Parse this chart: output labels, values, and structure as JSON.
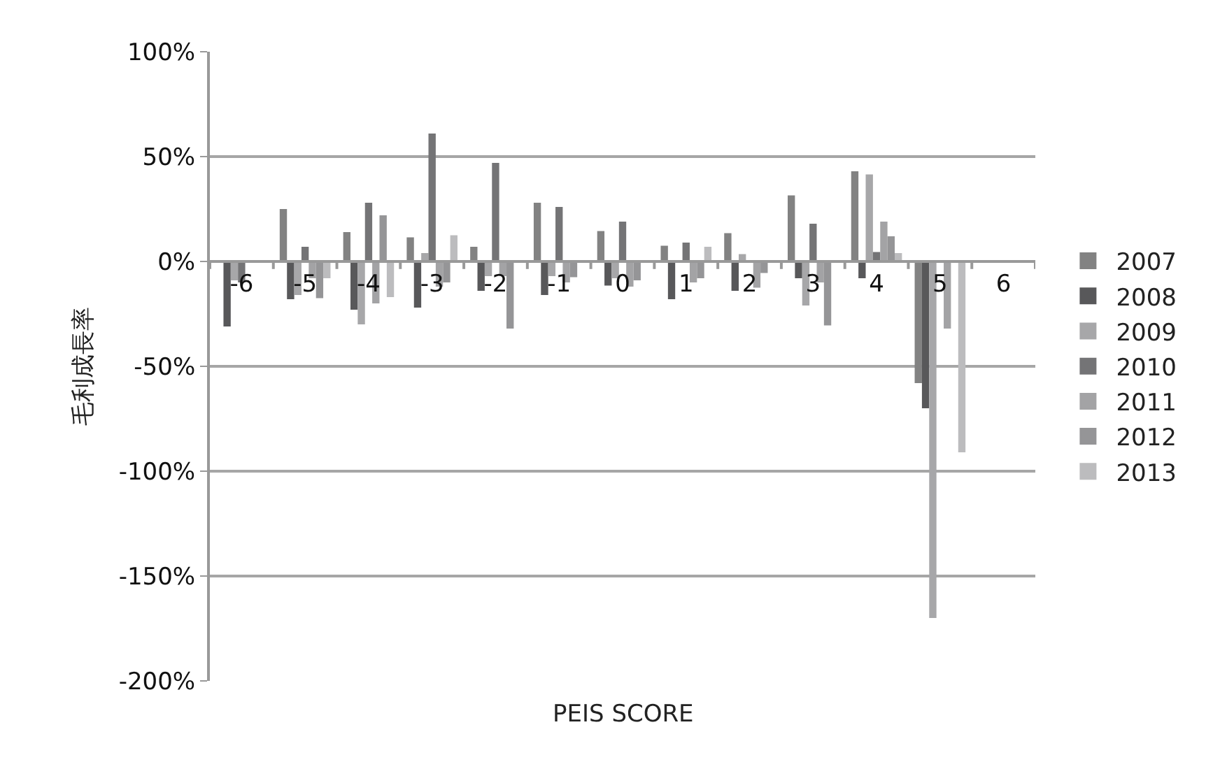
{
  "chart_data": {
    "type": "bar",
    "xlabel": "PEIS SCORE",
    "ylabel": "毛利成長率",
    "categories": [
      "-6",
      "-5",
      "-4",
      "-3",
      "-2",
      "-1",
      "0",
      "1",
      "2",
      "3",
      "4",
      "5",
      "6"
    ],
    "series": [
      {
        "name": "2007",
        "color": "#828282",
        "values": [
          null,
          25,
          14,
          11.5,
          7,
          28,
          14.5,
          7.5,
          13.5,
          31.5,
          43,
          -58,
          null
        ]
      },
      {
        "name": "2008",
        "color": "#58585a",
        "values": [
          -31,
          -18,
          -23,
          -22,
          -14,
          -16,
          -11.5,
          -18,
          -14,
          -8,
          -8,
          -70,
          null
        ]
      },
      {
        "name": "2009",
        "color": "#a7a7a9",
        "values": [
          -9,
          -16,
          -30,
          4,
          -7,
          -7,
          -8,
          null,
          3.5,
          -21,
          41.5,
          -170,
          null
        ]
      },
      {
        "name": "2010",
        "color": "#747476",
        "values": [
          -10,
          7,
          28,
          61,
          47,
          26,
          19,
          9,
          null,
          18,
          4.5,
          null,
          null
        ]
      },
      {
        "name": "2011",
        "color": "#a3a3a5",
        "values": [
          null,
          -8,
          -20,
          -12,
          -7,
          -10,
          -12,
          -10,
          -12.5,
          -10,
          19,
          -32,
          null
        ]
      },
      {
        "name": "2012",
        "color": "#959597",
        "values": [
          null,
          -17.5,
          22,
          -10,
          -32,
          -7.5,
          -9,
          -8,
          -5.5,
          -30.5,
          12,
          null,
          null
        ]
      },
      {
        "name": "2013",
        "color": "#bcbcbe",
        "values": [
          null,
          -8,
          -17,
          12.5,
          null,
          null,
          null,
          7,
          null,
          null,
          4,
          -91,
          null
        ]
      }
    ],
    "ylim": [
      -200,
      100
    ],
    "yticks": [
      {
        "value": -200,
        "label": "-200%"
      },
      {
        "value": -150,
        "label": "-150%"
      },
      {
        "value": -100,
        "label": "-100%"
      },
      {
        "value": -50,
        "label": "-50%"
      },
      {
        "value": 0,
        "label": "0%"
      },
      {
        "value": 50,
        "label": "50%"
      },
      {
        "value": 100,
        "label": "100%"
      }
    ],
    "grid": "y",
    "legend": "right"
  }
}
